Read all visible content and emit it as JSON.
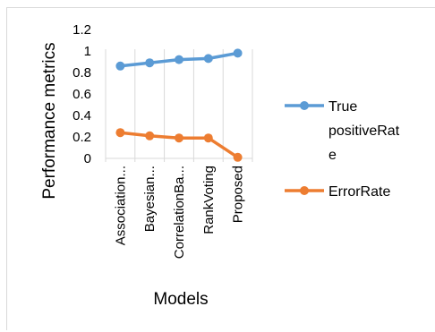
{
  "chart_data": {
    "type": "line",
    "title": "",
    "xlabel": "Models",
    "ylabel": "Performance metrics",
    "categories": [
      "Association...",
      "Bayesian...",
      "CorrelationBa...",
      "RankVoting",
      "Proposed"
    ],
    "series": [
      {
        "name": "True positiveRate",
        "legend_lines": [
          "True",
          "positiveRat",
          "e"
        ],
        "color": "#5b9bd5",
        "values": [
          0.86,
          0.89,
          0.92,
          0.93,
          0.98
        ]
      },
      {
        "name": "ErrorRate",
        "legend_lines": [
          "ErrorRate"
        ],
        "color": "#ed7d31",
        "values": [
          0.24,
          0.21,
          0.19,
          0.19,
          0.01
        ]
      }
    ],
    "ylim": [
      0,
      1.2
    ],
    "yticks": [
      "0",
      "0.2",
      "0.4",
      "0.6",
      "0.8",
      "1",
      "1.2"
    ],
    "grid": {
      "x": true,
      "y": false
    },
    "legend_position": "right"
  }
}
